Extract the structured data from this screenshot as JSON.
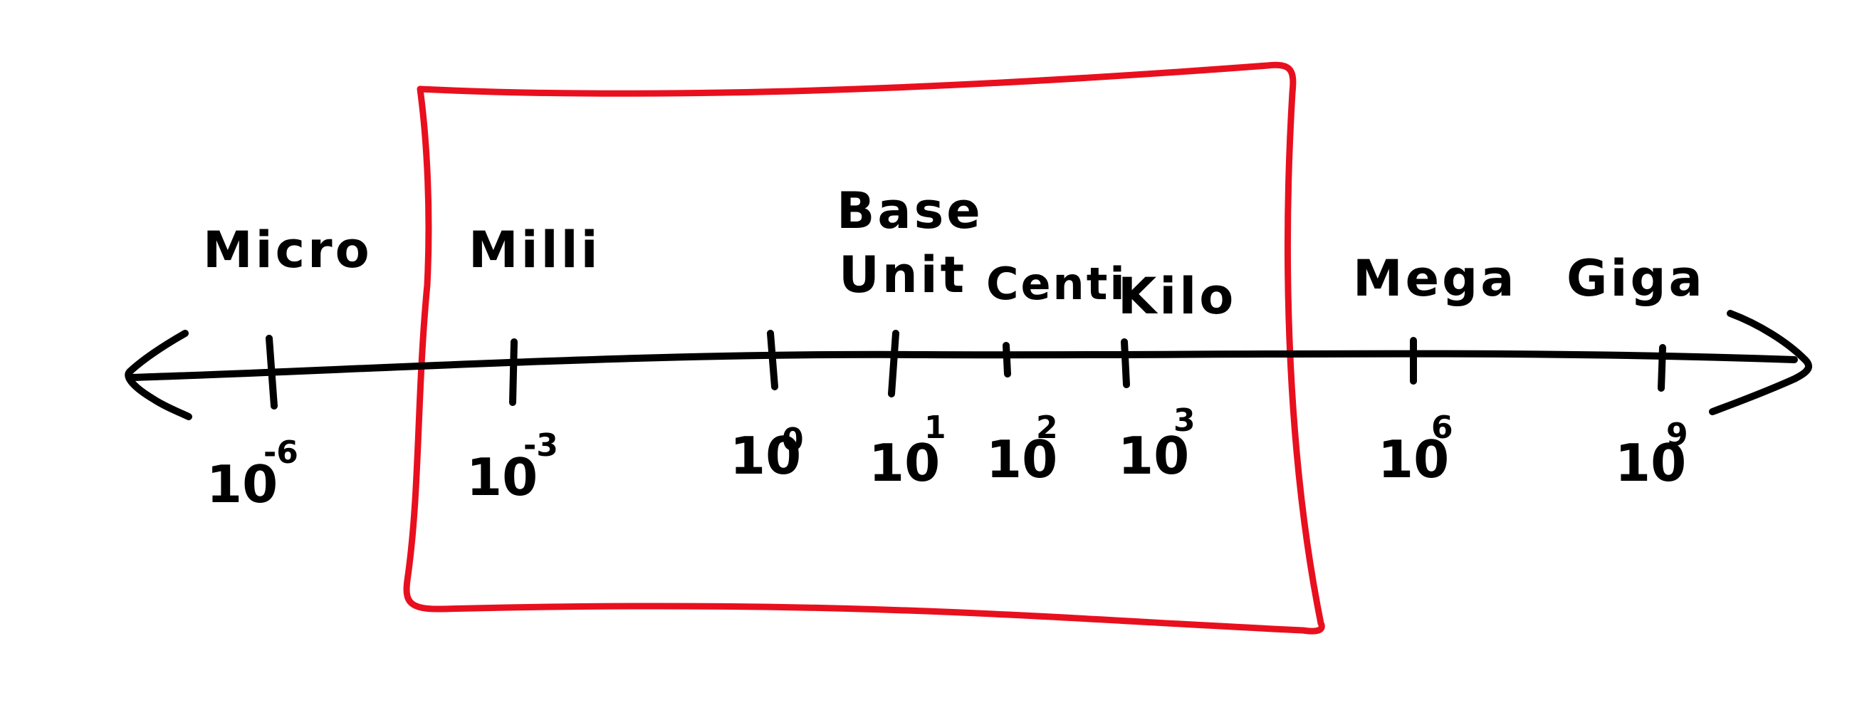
{
  "diagram": {
    "ink_color": "#000000",
    "highlight_color": "#e8101e",
    "highlight_box_label": "",
    "ticks": [
      {
        "prefix": "Micro",
        "base": "10",
        "exponent": "-6"
      },
      {
        "prefix": "Milli",
        "base": "10",
        "exponent": "-3"
      },
      {
        "prefix": "",
        "base": "10",
        "exponent": "0"
      },
      {
        "prefix": "Base Unit",
        "base": "10",
        "exponent": "1"
      },
      {
        "prefix": "Centi",
        "base": "10",
        "exponent": "2"
      },
      {
        "prefix": "Kilo",
        "base": "10",
        "exponent": "3"
      },
      {
        "prefix": "Mega",
        "base": "10",
        "exponent": "6"
      },
      {
        "prefix": "Giga",
        "base": "10",
        "exponent": "9"
      }
    ]
  }
}
